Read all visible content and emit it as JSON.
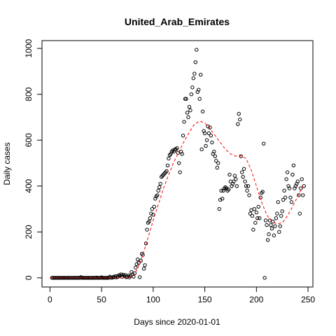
{
  "chart_data": {
    "type": "scatter",
    "title": "United_Arab_Emirates",
    "xlabel": "Days since 2020-01-01",
    "ylabel": "Daily cases",
    "xlim": [
      -7.7,
      254.7
    ],
    "ylim": [
      -40,
      1034
    ],
    "xticks": [
      0,
      50,
      100,
      150,
      200,
      250
    ],
    "yticks": [
      0,
      200,
      400,
      600,
      800,
      1000
    ],
    "point_color": "#000000",
    "fit_color": "#ff0000",
    "x": [
      2,
      3,
      4,
      5,
      6,
      7,
      8,
      9,
      10,
      11,
      12,
      13,
      14,
      15,
      16,
      17,
      18,
      19,
      20,
      21,
      22,
      23,
      24,
      25,
      26,
      27,
      28,
      29,
      30,
      31,
      32,
      33,
      34,
      35,
      36,
      37,
      38,
      39,
      40,
      41,
      42,
      43,
      44,
      45,
      46,
      47,
      48,
      49,
      50,
      51,
      52,
      53,
      54,
      55,
      56,
      57,
      58,
      59,
      60,
      61,
      62,
      63,
      64,
      65,
      66,
      67,
      68,
      69,
      70,
      71,
      72,
      73,
      74,
      75,
      76,
      77,
      78,
      79,
      80,
      81,
      82,
      83,
      84,
      85,
      86,
      87,
      88,
      89,
      90,
      91,
      92,
      93,
      94,
      95,
      96,
      97,
      98,
      99,
      100,
      101,
      102,
      103,
      104,
      105,
      106,
      107,
      108,
      109,
      110,
      111,
      112,
      113,
      114,
      115,
      116,
      117,
      118,
      119,
      120,
      121,
      122,
      123,
      124,
      125,
      126,
      127,
      128,
      129,
      130,
      131,
      132,
      133,
      134,
      135,
      136,
      137,
      138,
      139,
      140,
      141,
      142,
      143,
      144,
      145,
      146,
      147,
      148,
      149,
      150,
      151,
      152,
      153,
      154,
      155,
      156,
      157,
      158,
      159,
      160,
      161,
      162,
      163,
      164,
      165,
      166,
      167,
      168,
      169,
      170,
      171,
      172,
      173,
      174,
      175,
      176,
      177,
      178,
      179,
      180,
      181,
      182,
      183,
      184,
      185,
      186,
      187,
      188,
      189,
      190,
      191,
      192,
      193,
      194,
      195,
      196,
      197,
      198,
      199,
      200,
      201,
      202,
      203,
      204,
      205,
      206,
      207,
      208,
      209,
      210,
      211,
      212,
      213,
      214,
      215,
      216,
      217,
      218,
      219,
      220,
      221,
      222,
      223,
      224,
      225,
      226,
      227,
      228,
      229,
      230,
      231,
      232,
      233,
      234,
      235,
      236,
      237,
      238,
      239,
      240,
      241,
      242,
      243,
      244,
      245,
      246
    ],
    "values": [
      0,
      0,
      0,
      0,
      0,
      0,
      0,
      0,
      0,
      0,
      0,
      0,
      0,
      0,
      0,
      0,
      0,
      0,
      0,
      0,
      0,
      0,
      0,
      0,
      0,
      0,
      0,
      0,
      3,
      0,
      0,
      0,
      0,
      0,
      0,
      0,
      0,
      0,
      0,
      0,
      0,
      0,
      0,
      1,
      0,
      0,
      0,
      0,
      2,
      0,
      0,
      0,
      0,
      0,
      0,
      0,
      5,
      2,
      0,
      3,
      5,
      2,
      8,
      3,
      5,
      12,
      10,
      15,
      5,
      13,
      8,
      12,
      3,
      5,
      10,
      2,
      8,
      25,
      15,
      5,
      20,
      45,
      60,
      80,
      65,
      3,
      75,
      105,
      100,
      40,
      55,
      150,
      210,
      240,
      245,
      260,
      280,
      300,
      275,
      310,
      345,
      355,
      360,
      380,
      395,
      410,
      440,
      445,
      450,
      455,
      460,
      465,
      490,
      520,
      535,
      540,
      550,
      555,
      550,
      560,
      560,
      565,
      545,
      500,
      460,
      550,
      540,
      620,
      680,
      780,
      780,
      720,
      700,
      745,
      730,
      800,
      830,
      870,
      890,
      940,
      994,
      810,
      820,
      780,
      885,
      560,
      725,
      640,
      630,
      575,
      600,
      660,
      630,
      655,
      620,
      590,
      540,
      550,
      530,
      510,
      480,
      500,
      300,
      340,
      380,
      345,
      380,
      390,
      395,
      390,
      380,
      385,
      450,
      420,
      400,
      410,
      420,
      445,
      430,
      400,
      670,
      715,
      690,
      530,
      460,
      440,
      475,
      420,
      400,
      380,
      400,
      360,
      280,
      295,
      270,
      210,
      300,
      240,
      285,
      260,
      310,
      260,
      350,
      370,
      375,
      585,
      0,
      250,
      230,
      165,
      190,
      250,
      230,
      215,
      245,
      185,
      225,
      260,
      280,
      330,
      200,
      225,
      270,
      290,
      340,
      380,
      350,
      430,
      460,
      400,
      390,
      350,
      330,
      450,
      490,
      390,
      400,
      410,
      420,
      360,
      280,
      390,
      430,
      360,
      400
    ],
    "fit_x": [
      0,
      5,
      10,
      15,
      20,
      25,
      30,
      35,
      40,
      45,
      50,
      55,
      60,
      65,
      70,
      75,
      80,
      85,
      90,
      95,
      100,
      105,
      110,
      115,
      120,
      125,
      130,
      135,
      140,
      145,
      150,
      155,
      160,
      165,
      170,
      175,
      180,
      185,
      190,
      195,
      200,
      205,
      210,
      215,
      220,
      225,
      230,
      235,
      240,
      245
    ],
    "fit": [
      0,
      0,
      0,
      0,
      0,
      0,
      0,
      0,
      0,
      0,
      0,
      0,
      0,
      0,
      0,
      0,
      5,
      40,
      100,
      175,
      250,
      320,
      390,
      450,
      505,
      550,
      595,
      635,
      670,
      683,
      675,
      650,
      620,
      590,
      560,
      540,
      530,
      532,
      520,
      470,
      400,
      330,
      275,
      245,
      235,
      240,
      270,
      310,
      355,
      400
    ]
  }
}
